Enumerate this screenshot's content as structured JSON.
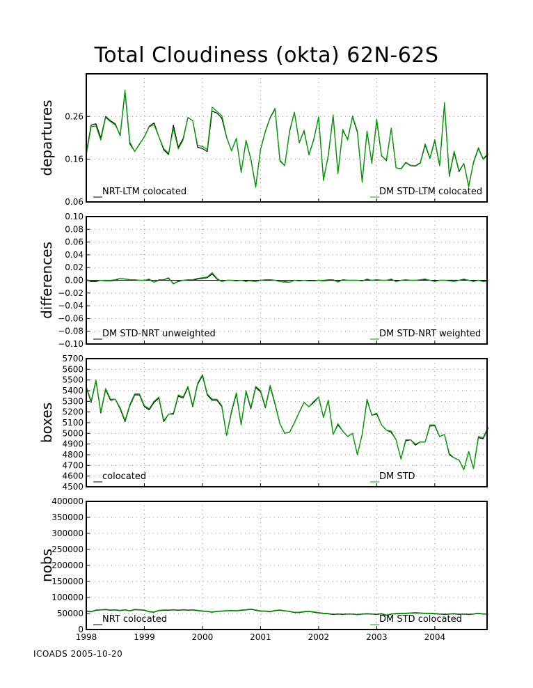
{
  "title": "Total Cloudiness (okta) 62N-62S",
  "footer": "ICOADS 2005-10-20",
  "colors": {
    "black_series": "#000000",
    "green_series": "#00a000",
    "grid": "#8c8c8c"
  },
  "chart_data": [
    {
      "type": "line",
      "ylabel": "departures",
      "ylim": [
        0.06,
        0.36
      ],
      "yticks": [
        "0.26",
        "0.16",
        "0.06"
      ],
      "ytick_values": [
        0.26,
        0.16,
        0.06
      ],
      "x_start": 1998.0,
      "x_step": 0.0833333,
      "legend_left": "NRT-LTM colocated",
      "legend_right": "DM STD-LTM colocated",
      "series": [
        {
          "key": "black",
          "values": [
            0.175,
            0.24,
            0.243,
            0.21,
            0.26,
            0.25,
            0.243,
            0.215,
            0.318,
            0.196,
            0.178,
            0.195,
            0.213,
            0.237,
            0.245,
            0.213,
            0.182,
            0.171,
            0.24,
            0.188,
            0.208,
            0.258,
            0.25,
            0.188,
            0.185,
            0.178,
            0.273,
            0.268,
            0.256,
            0.211,
            0.18,
            0.208,
            0.13,
            0.204,
            0.161,
            0.096,
            0.183,
            0.225,
            0.257,
            0.277,
            0.156,
            0.145,
            0.226,
            0.27,
            0.2,
            0.226,
            0.171,
            0.207,
            0.258,
            0.113,
            0.168,
            0.262,
            0.128,
            0.227,
            0.207,
            0.259,
            0.223,
            0.108,
            0.224,
            0.152,
            0.251,
            0.168,
            0.158,
            0.232,
            0.14,
            0.137,
            0.152,
            0.145,
            0.144,
            0.151,
            0.193,
            0.162,
            0.203,
            0.145,
            0.289,
            0.12,
            0.176,
            0.131,
            0.15,
            0.097,
            0.152,
            0.185,
            0.16,
            0.171
          ]
        },
        {
          "key": "green",
          "values": [
            0.17,
            0.236,
            0.238,
            0.205,
            0.258,
            0.248,
            0.24,
            0.217,
            0.322,
            0.2,
            0.178,
            0.196,
            0.212,
            0.236,
            0.241,
            0.213,
            0.185,
            0.174,
            0.232,
            0.184,
            0.205,
            0.258,
            0.25,
            0.192,
            0.19,
            0.183,
            0.282,
            0.272,
            0.262,
            0.212,
            0.18,
            0.209,
            0.129,
            0.203,
            0.16,
            0.094,
            0.183,
            0.226,
            0.258,
            0.279,
            0.158,
            0.145,
            0.224,
            0.27,
            0.198,
            0.228,
            0.17,
            0.206,
            0.259,
            0.11,
            0.17,
            0.264,
            0.126,
            0.23,
            0.205,
            0.261,
            0.226,
            0.106,
            0.226,
            0.15,
            0.254,
            0.169,
            0.156,
            0.233,
            0.14,
            0.138,
            0.153,
            0.146,
            0.145,
            0.152,
            0.196,
            0.163,
            0.206,
            0.146,
            0.293,
            0.122,
            0.179,
            0.133,
            0.15,
            0.095,
            0.154,
            0.187,
            0.161,
            0.174
          ]
        }
      ]
    },
    {
      "type": "line",
      "ylabel": "differences",
      "ylim": [
        -0.1,
        0.1
      ],
      "yticks": [
        "0.10",
        "0.08",
        "0.06",
        "0.04",
        "0.02",
        "0.00",
        "−0.02",
        "−0.04",
        "−0.06",
        "−0.08",
        "−0.10"
      ],
      "ytick_values": [
        0.1,
        0.08,
        0.06,
        0.04,
        0.02,
        0.0,
        -0.02,
        -0.04,
        -0.06,
        -0.08,
        -0.1
      ],
      "x_start": 1998.0,
      "x_step": 0.0833333,
      "legend_left": "DM STD-NRT unweighted",
      "legend_right": "DM STD-NRT weighted",
      "series": [
        {
          "key": "black",
          "values": [
            0.0,
            -0.002,
            -0.002,
            0.0,
            -0.001,
            -0.001,
            0.0,
            0.003,
            0.002,
            0.001,
            0.0,
            0.0,
            0.0,
            0.001,
            -0.003,
            0.0,
            0.001,
            0.003,
            -0.005,
            -0.002,
            0.0,
            0.0,
            0.0,
            0.002,
            0.003,
            0.004,
            0.01,
            0.002,
            -0.002,
            0.0,
            0.0,
            -0.001,
            0.0,
            -0.001,
            -0.001,
            -0.002,
            0.0,
            0.0,
            0.0,
            0.0,
            -0.002,
            -0.002,
            -0.003,
            0.0,
            -0.001,
            0.0,
            -0.001,
            -0.001,
            0.0,
            -0.001,
            0.0,
            0.0,
            -0.002,
            0.001,
            0.0,
            0.0,
            0.0,
            -0.001,
            0.001,
            0.0,
            0.001,
            0.0,
            0.0,
            0.001,
            -0.001,
            0.0,
            0.0,
            0.0,
            0.0,
            0.0,
            0.001,
            0.0,
            -0.001,
            0.0,
            0.0,
            0.0,
            0.0,
            0.0,
            0.001,
            0.0,
            -0.001,
            0.0,
            -0.001,
            0.0
          ]
        },
        {
          "key": "green",
          "values": [
            0.001,
            -0.001,
            -0.001,
            0.0,
            0.0,
            0.0,
            0.001,
            0.003,
            0.002,
            0.001,
            0.001,
            0.0,
            0.0,
            0.002,
            -0.003,
            0.001,
            0.001,
            0.004,
            -0.006,
            -0.001,
            0.0,
            0.001,
            0.001,
            0.003,
            0.004,
            0.005,
            0.012,
            0.003,
            -0.002,
            0.0,
            0.0,
            -0.001,
            0.0,
            -0.002,
            0.0,
            -0.002,
            0.0,
            0.001,
            0.001,
            0.0,
            -0.002,
            -0.003,
            -0.003,
            0.0,
            -0.001,
            0.0,
            -0.001,
            -0.001,
            0.0,
            0.0,
            0.001,
            0.001,
            -0.003,
            0.001,
            0.0,
            0.0,
            0.0,
            -0.001,
            0.002,
            0.0,
            0.001,
            0.0,
            0.0,
            0.002,
            -0.002,
            0.0,
            0.001,
            0.0,
            0.0,
            0.001,
            0.002,
            0.0,
            -0.002,
            0.0,
            0.0,
            -0.001,
            -0.002,
            0.0,
            0.002,
            0.0,
            -0.002,
            0.0,
            -0.002,
            -0.001
          ]
        }
      ]
    },
    {
      "type": "line",
      "ylabel": "boxes",
      "ylim": [
        4500,
        5700
      ],
      "yticks": [
        "5700",
        "5600",
        "5500",
        "5400",
        "5300",
        "5200",
        "5100",
        "5000",
        "4900",
        "4800",
        "4700",
        "4600",
        "4500"
      ],
      "ytick_values": [
        5700,
        5600,
        5500,
        5400,
        5300,
        5200,
        5100,
        5000,
        4900,
        4800,
        4700,
        4600,
        4500
      ],
      "x_start": 1998.0,
      "x_step": 0.0833333,
      "legend_left": "colocated",
      "legend_right": "DM STD",
      "series": [
        {
          "key": "black",
          "values": [
            5430,
            5290,
            5490,
            5190,
            5410,
            5310,
            5320,
            5230,
            5110,
            5260,
            5360,
            5360,
            5250,
            5220,
            5290,
            5330,
            5110,
            5180,
            5180,
            5350,
            5330,
            5430,
            5250,
            5460,
            5540,
            5360,
            5310,
            5310,
            5250,
            4980,
            5200,
            5370,
            5080,
            5390,
            5230,
            5430,
            5390,
            5240,
            5440,
            5270,
            5090,
            5000,
            5010,
            5100,
            5200,
            5290,
            5250,
            5290,
            5340,
            5150,
            5310,
            4990,
            5080,
            5020,
            4970,
            5000,
            4800,
            4990,
            5310,
            5170,
            5180,
            5080,
            5030,
            5010,
            4940,
            4760,
            4930,
            4940,
            4890,
            4920,
            4920,
            5070,
            5070,
            4970,
            4990,
            4800,
            4770,
            4750,
            4660,
            4830,
            4670,
            4960,
            4950,
            5050
          ]
        },
        {
          "key": "green",
          "values": [
            5440,
            5300,
            5500,
            5200,
            5420,
            5320,
            5320,
            5240,
            5120,
            5270,
            5370,
            5370,
            5260,
            5230,
            5300,
            5340,
            5120,
            5180,
            5190,
            5360,
            5340,
            5440,
            5260,
            5470,
            5550,
            5370,
            5320,
            5320,
            5260,
            4980,
            5210,
            5380,
            5080,
            5400,
            5240,
            5440,
            5400,
            5250,
            5450,
            5280,
            5090,
            5000,
            5010,
            5100,
            5200,
            5290,
            5250,
            5300,
            5340,
            5150,
            5310,
            4990,
            5090,
            5020,
            4970,
            5000,
            4800,
            4990,
            5320,
            5170,
            5190,
            5080,
            5030,
            5020,
            4940,
            4760,
            4940,
            4940,
            4900,
            4920,
            4920,
            5080,
            5080,
            4970,
            4990,
            4810,
            4770,
            4750,
            4660,
            4830,
            4670,
            4970,
            4960,
            5060
          ]
        }
      ]
    },
    {
      "type": "line",
      "ylabel": "nobs",
      "ylim": [
        0,
        400000
      ],
      "yticks": [
        "400000",
        "350000",
        "300000",
        "250000",
        "200000",
        "150000",
        "100000",
        "50000",
        "0"
      ],
      "ytick_values": [
        400000,
        350000,
        300000,
        250000,
        200000,
        150000,
        100000,
        50000,
        0
      ],
      "x_start": 1998.0,
      "x_step": 0.0833333,
      "xticks": [
        "1998",
        "1999",
        "2000",
        "2001",
        "2002",
        "2003",
        "2004"
      ],
      "xtick_values": [
        1998,
        1999,
        2000,
        2001,
        2002,
        2003,
        2004
      ],
      "xlim": [
        1998.0,
        2004.9
      ],
      "legend_left": "NRT colocated",
      "legend_right": "DM STD colocated",
      "series": [
        {
          "key": "black",
          "values": [
            57000,
            55000,
            60000,
            61000,
            62000,
            60000,
            61000,
            59000,
            61000,
            58000,
            62000,
            61000,
            60000,
            55000,
            54000,
            59000,
            60000,
            60000,
            61000,
            60000,
            61000,
            60000,
            61000,
            59000,
            57000,
            56000,
            54000,
            56000,
            57000,
            58000,
            59000,
            58000,
            60000,
            61000,
            63000,
            60000,
            57000,
            57000,
            55000,
            59000,
            60000,
            58000,
            56000,
            53000,
            53000,
            55000,
            56000,
            54000,
            52000,
            50000,
            49000,
            47000,
            48000,
            47000,
            48000,
            48000,
            46000,
            48000,
            49000,
            48000,
            47000,
            49000,
            44000,
            48000,
            49000,
            50000,
            50000,
            51000,
            52000,
            51000,
            50000,
            50000,
            49000,
            48000,
            47000,
            48000,
            49000,
            47000,
            48000,
            47000,
            48000,
            50000,
            48000,
            48000
          ]
        },
        {
          "key": "green",
          "values": [
            58000,
            56000,
            61000,
            62000,
            63000,
            61000,
            62000,
            60000,
            62000,
            59000,
            63000,
            62000,
            61000,
            56000,
            55000,
            60000,
            61000,
            61000,
            62000,
            61000,
            62000,
            61000,
            62000,
            60000,
            58000,
            57000,
            55000,
            57000,
            58000,
            59000,
            60000,
            59000,
            61000,
            62000,
            64000,
            61000,
            58000,
            58000,
            56000,
            60000,
            61000,
            59000,
            57000,
            54000,
            54000,
            56000,
            57000,
            55000,
            53000,
            51000,
            50000,
            48000,
            49000,
            48000,
            49000,
            49000,
            47000,
            49000,
            50000,
            49000,
            48000,
            50000,
            45000,
            49000,
            50000,
            51000,
            51000,
            52000,
            53000,
            52000,
            51000,
            51000,
            50000,
            49000,
            48000,
            49000,
            50000,
            48000,
            49000,
            48000,
            49000,
            51000,
            49000,
            49000
          ]
        }
      ]
    }
  ]
}
